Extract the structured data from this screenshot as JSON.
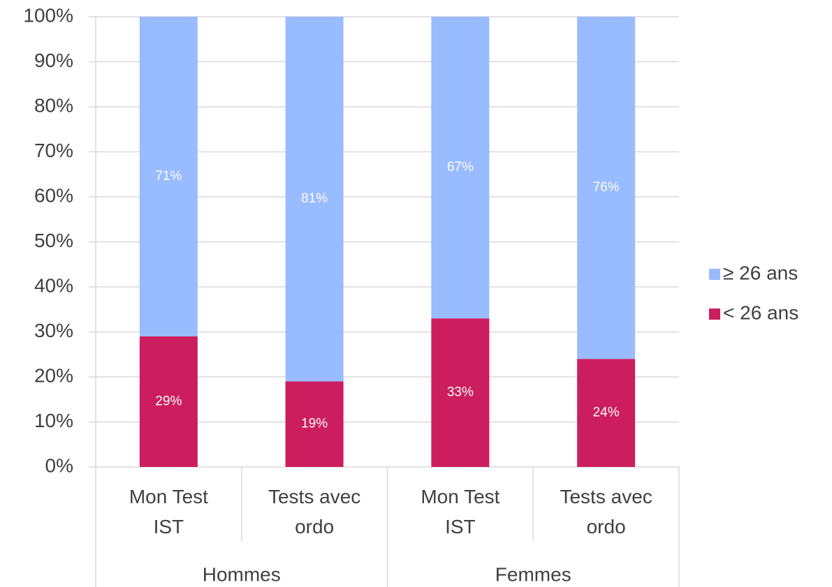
{
  "chart_data": {
    "type": "stacked_bar",
    "categories": [
      "Mon Test IST",
      "Tests avec ordo",
      "Mon Test IST",
      "Tests avec ordo"
    ],
    "groups": [
      "Hommes",
      "Femmes"
    ],
    "series": [
      {
        "name": "< 26 ans",
        "color": "#cc1e5e",
        "values": [
          29,
          19,
          33,
          24
        ],
        "value_labels": [
          "29%",
          "19%",
          "33%",
          "24%"
        ]
      },
      {
        "name": "≥ 26 ans",
        "color": "#99bbff",
        "values": [
          71,
          81,
          67,
          76
        ],
        "value_labels": [
          "71%",
          "81%",
          "67%",
          "76%"
        ]
      }
    ],
    "ylim": [
      0,
      100
    ],
    "yticks": [
      {
        "value": 0,
        "label": "0%"
      },
      {
        "value": 10,
        "label": "10%"
      },
      {
        "value": 20,
        "label": "20%"
      },
      {
        "value": 30,
        "label": "30%"
      },
      {
        "value": 40,
        "label": "40%"
      },
      {
        "value": 50,
        "label": "50%"
      },
      {
        "value": 60,
        "label": "60%"
      },
      {
        "value": 70,
        "label": "70%"
      },
      {
        "value": 80,
        "label": "80%"
      },
      {
        "value": 90,
        "label": "90%"
      },
      {
        "value": 100,
        "label": "100%"
      }
    ],
    "grid": true,
    "legend": "right"
  }
}
